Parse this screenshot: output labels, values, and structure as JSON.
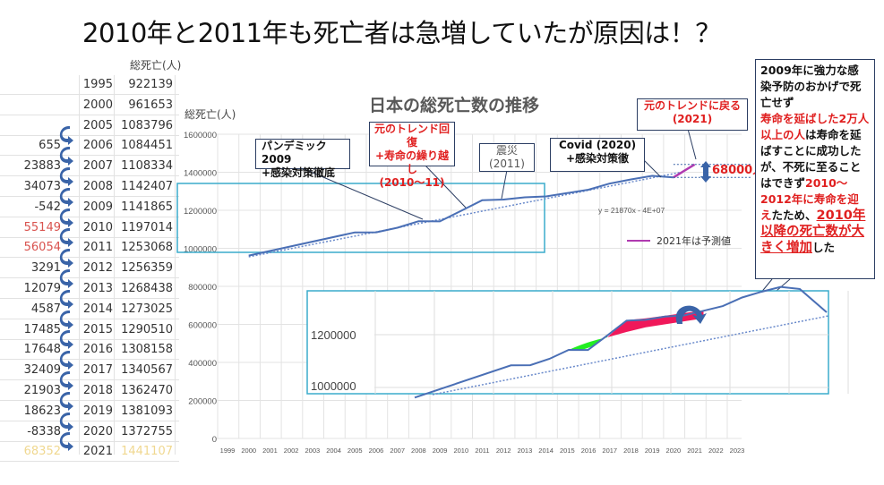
{
  "title": "2010年と2011年も死亡者は急増していたが原因は！？",
  "table": {
    "header": "総死亡(人)",
    "rows": [
      {
        "diff": "",
        "year": "1995",
        "value": "922139",
        "style": "cut"
      },
      {
        "diff": "",
        "year": "2000",
        "value": "961653",
        "style": ""
      },
      {
        "diff": "",
        "year": "2005",
        "value": "1083796",
        "style": ""
      },
      {
        "diff": "655",
        "year": "2006",
        "value": "1084451",
        "style": ""
      },
      {
        "diff": "23883",
        "year": "2007",
        "value": "1108334",
        "style": ""
      },
      {
        "diff": "34073",
        "year": "2008",
        "value": "1142407",
        "style": ""
      },
      {
        "diff": "-542",
        "year": "2009",
        "value": "1141865",
        "style": ""
      },
      {
        "diff": "55149",
        "year": "2010",
        "value": "1197014",
        "style": "red"
      },
      {
        "diff": "56054",
        "year": "2011",
        "value": "1253068",
        "style": "red"
      },
      {
        "diff": "3291",
        "year": "2012",
        "value": "1256359",
        "style": ""
      },
      {
        "diff": "12079",
        "year": "2013",
        "value": "1268438",
        "style": ""
      },
      {
        "diff": "4587",
        "year": "2014",
        "value": "1273025",
        "style": ""
      },
      {
        "diff": "17485",
        "year": "2015",
        "value": "1290510",
        "style": ""
      },
      {
        "diff": "17648",
        "year": "2016",
        "value": "1308158",
        "style": ""
      },
      {
        "diff": "32409",
        "year": "2017",
        "value": "1340567",
        "style": ""
      },
      {
        "diff": "21903",
        "year": "2018",
        "value": "1362470",
        "style": ""
      },
      {
        "diff": "18623",
        "year": "2019",
        "value": "1381093",
        "style": ""
      },
      {
        "diff": "-8338",
        "year": "2020",
        "value": "1372755",
        "style": ""
      },
      {
        "diff": "68352",
        "year": "2021",
        "value": "1441107",
        "style": "yellow"
      }
    ]
  },
  "chart_data": {
    "type": "line",
    "title": "日本の総死亡数の推移",
    "ylabel": "総死亡(人)",
    "xlabel": "",
    "xlim": [
      1999,
      2023
    ],
    "ylim": [
      0,
      1600000
    ],
    "yticks": [
      0,
      200000,
      400000,
      600000,
      800000,
      1000000,
      1200000,
      1400000,
      1600000
    ],
    "xticks": [
      1999,
      2000,
      2001,
      2002,
      2003,
      2004,
      2005,
      2006,
      2007,
      2008,
      2009,
      2010,
      2011,
      2012,
      2013,
      2014,
      2015,
      2016,
      2017,
      2018,
      2019,
      2020,
      2021,
      2022,
      2023
    ],
    "series": [
      {
        "name": "総死亡数",
        "color": "#4a6fb5",
        "x": [
          2000,
          2005,
          2006,
          2007,
          2008,
          2009,
          2010,
          2011,
          2012,
          2013,
          2014,
          2015,
          2016,
          2017,
          2018,
          2019,
          2020
        ],
        "y": [
          961653,
          1083796,
          1084451,
          1108334,
          1142407,
          1141865,
          1197014,
          1253068,
          1256359,
          1268438,
          1273025,
          1290510,
          1308158,
          1340567,
          1362470,
          1381093,
          1372755
        ]
      },
      {
        "name": "2021年は予測値",
        "color": "#b03ab0",
        "x": [
          2020,
          2021
        ],
        "y": [
          1372755,
          1441107
        ]
      }
    ],
    "trendline": {
      "label": "y = 21870x - 4E+07",
      "style": "dotted"
    },
    "legend": [
      {
        "label": "2021年は予測値",
        "color": "#b03ab0",
        "position": "lower-right"
      }
    ],
    "annotations": [
      {
        "id": "pandemic",
        "lines": [
          "パンデミック2009",
          "+感染対策徹底"
        ],
        "color": "#111"
      },
      {
        "id": "trend-recover",
        "lines": [
          "元のトレンド回復",
          "+寿命の繰り越し",
          "(2010〜11)"
        ],
        "color": "#e02020"
      },
      {
        "id": "quake",
        "lines": [
          "震災",
          "(2011)"
        ],
        "color": "#555"
      },
      {
        "id": "covid",
        "lines": [
          "Covid (2020)",
          "+感染対策徹"
        ],
        "color": "#111"
      },
      {
        "id": "trend-return",
        "lines": [
          "元のトレンドに戻る",
          "(2021)"
        ],
        "color": "#e02020"
      },
      {
        "id": "gap",
        "lines": [
          "68000人"
        ],
        "color": "#e02020"
      }
    ],
    "inset": {
      "yticks": [
        "1200000",
        "1000000"
      ]
    }
  },
  "note": {
    "p1": "2009年に強力な感染予防のおかげで死亡せず",
    "p2": "寿命を延ばした2万人以上の人",
    "p3": "は寿命を延ばすことに成功したが、不死に至ることはできず",
    "p4": "2010〜2012年に寿命を迎え",
    "p5": "たため、",
    "p6": "2010年以降の死亡数が大きく増加",
    "p7": "した"
  }
}
